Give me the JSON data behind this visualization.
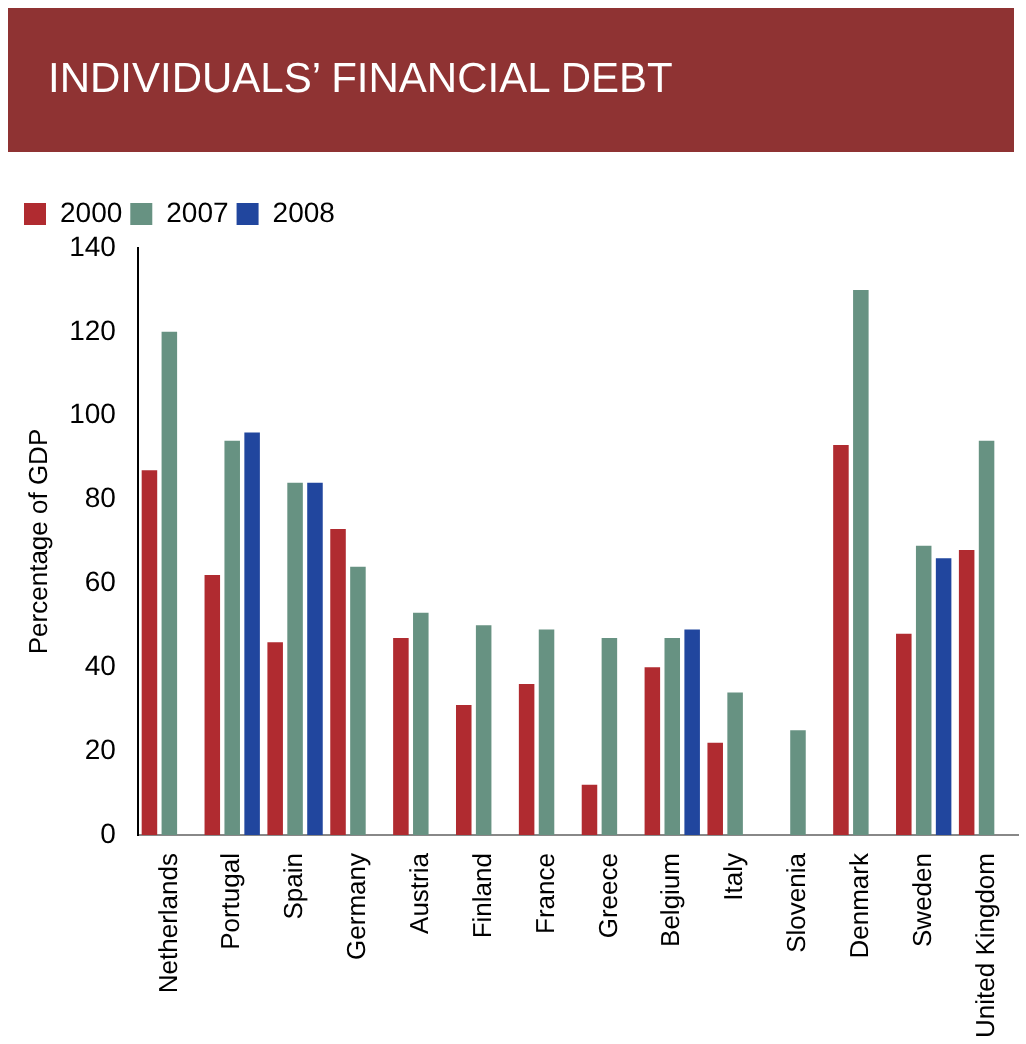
{
  "chart_data": {
    "type": "bar",
    "title": "INDIVIDUALS’ FINANCIAL DEBT",
    "ylabel": "Percentage of GDP",
    "categories": [
      "Netherlands",
      "Portugal",
      "Spain",
      "Germany",
      "Austria",
      "Finland",
      "France",
      "Greece",
      "Belgium",
      "Italy",
      "Slovenia",
      "Denmark",
      "Sweden",
      "United Kingdom"
    ],
    "series": [
      {
        "name": "2000",
        "color": "#b02b30",
        "values": [
          87,
          62,
          46,
          73,
          47,
          31,
          36,
          12,
          40,
          22,
          null,
          93,
          48,
          68
        ]
      },
      {
        "name": "2007",
        "color": "#679282",
        "values": [
          120,
          94,
          84,
          64,
          53,
          50,
          49,
          47,
          47,
          34,
          25,
          130,
          69,
          94
        ]
      },
      {
        "name": "2008",
        "color": "#21469e",
        "values": [
          null,
          96,
          84,
          null,
          null,
          null,
          null,
          null,
          49,
          null,
          null,
          null,
          66,
          null
        ]
      }
    ],
    "ylim": [
      0,
      140
    ],
    "yticks": [
      0,
      20,
      40,
      60,
      80,
      100,
      120,
      140
    ],
    "grid": false,
    "legend": "top left"
  }
}
